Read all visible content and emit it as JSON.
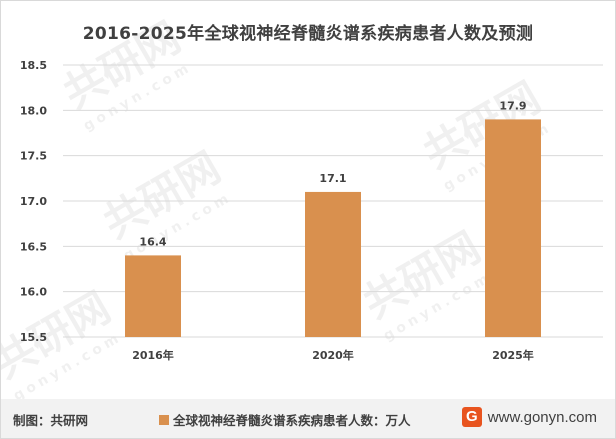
{
  "chart_data": {
    "type": "bar",
    "title": "2016-2025年全球视神经脊髓炎谱系疾病患者人数及预测",
    "categories": [
      "2016年",
      "2020年",
      "2025年"
    ],
    "series": [
      {
        "name": "全球视神经脊髓炎谱系疾病患者人数：万人",
        "values": [
          16.4,
          17.1,
          17.9
        ]
      }
    ],
    "data_labels": [
      "16.4",
      "17.1",
      "17.9"
    ],
    "ylim": [
      15.5,
      18.5
    ],
    "yticks": [
      "15.5",
      "16.0",
      "16.5",
      "17.0",
      "17.5",
      "18.0",
      "18.5"
    ],
    "grid": true,
    "legend_position": "bottom",
    "bar_color": "#D9904E"
  },
  "footer": {
    "source": "制图：共研网",
    "legend_label": "全球视神经脊髓炎谱系疾病患者人数：万人",
    "logo_letter": "G",
    "website": "www.gonyn.com"
  },
  "watermark": {
    "brand": "共研网",
    "domain": "gonyn.com"
  },
  "colors": {
    "bar": "#D9904E",
    "grid": "#d9d9d9",
    "text": "#404040",
    "footer_bg": "#f2f2f2",
    "logo": "#e8541f"
  }
}
